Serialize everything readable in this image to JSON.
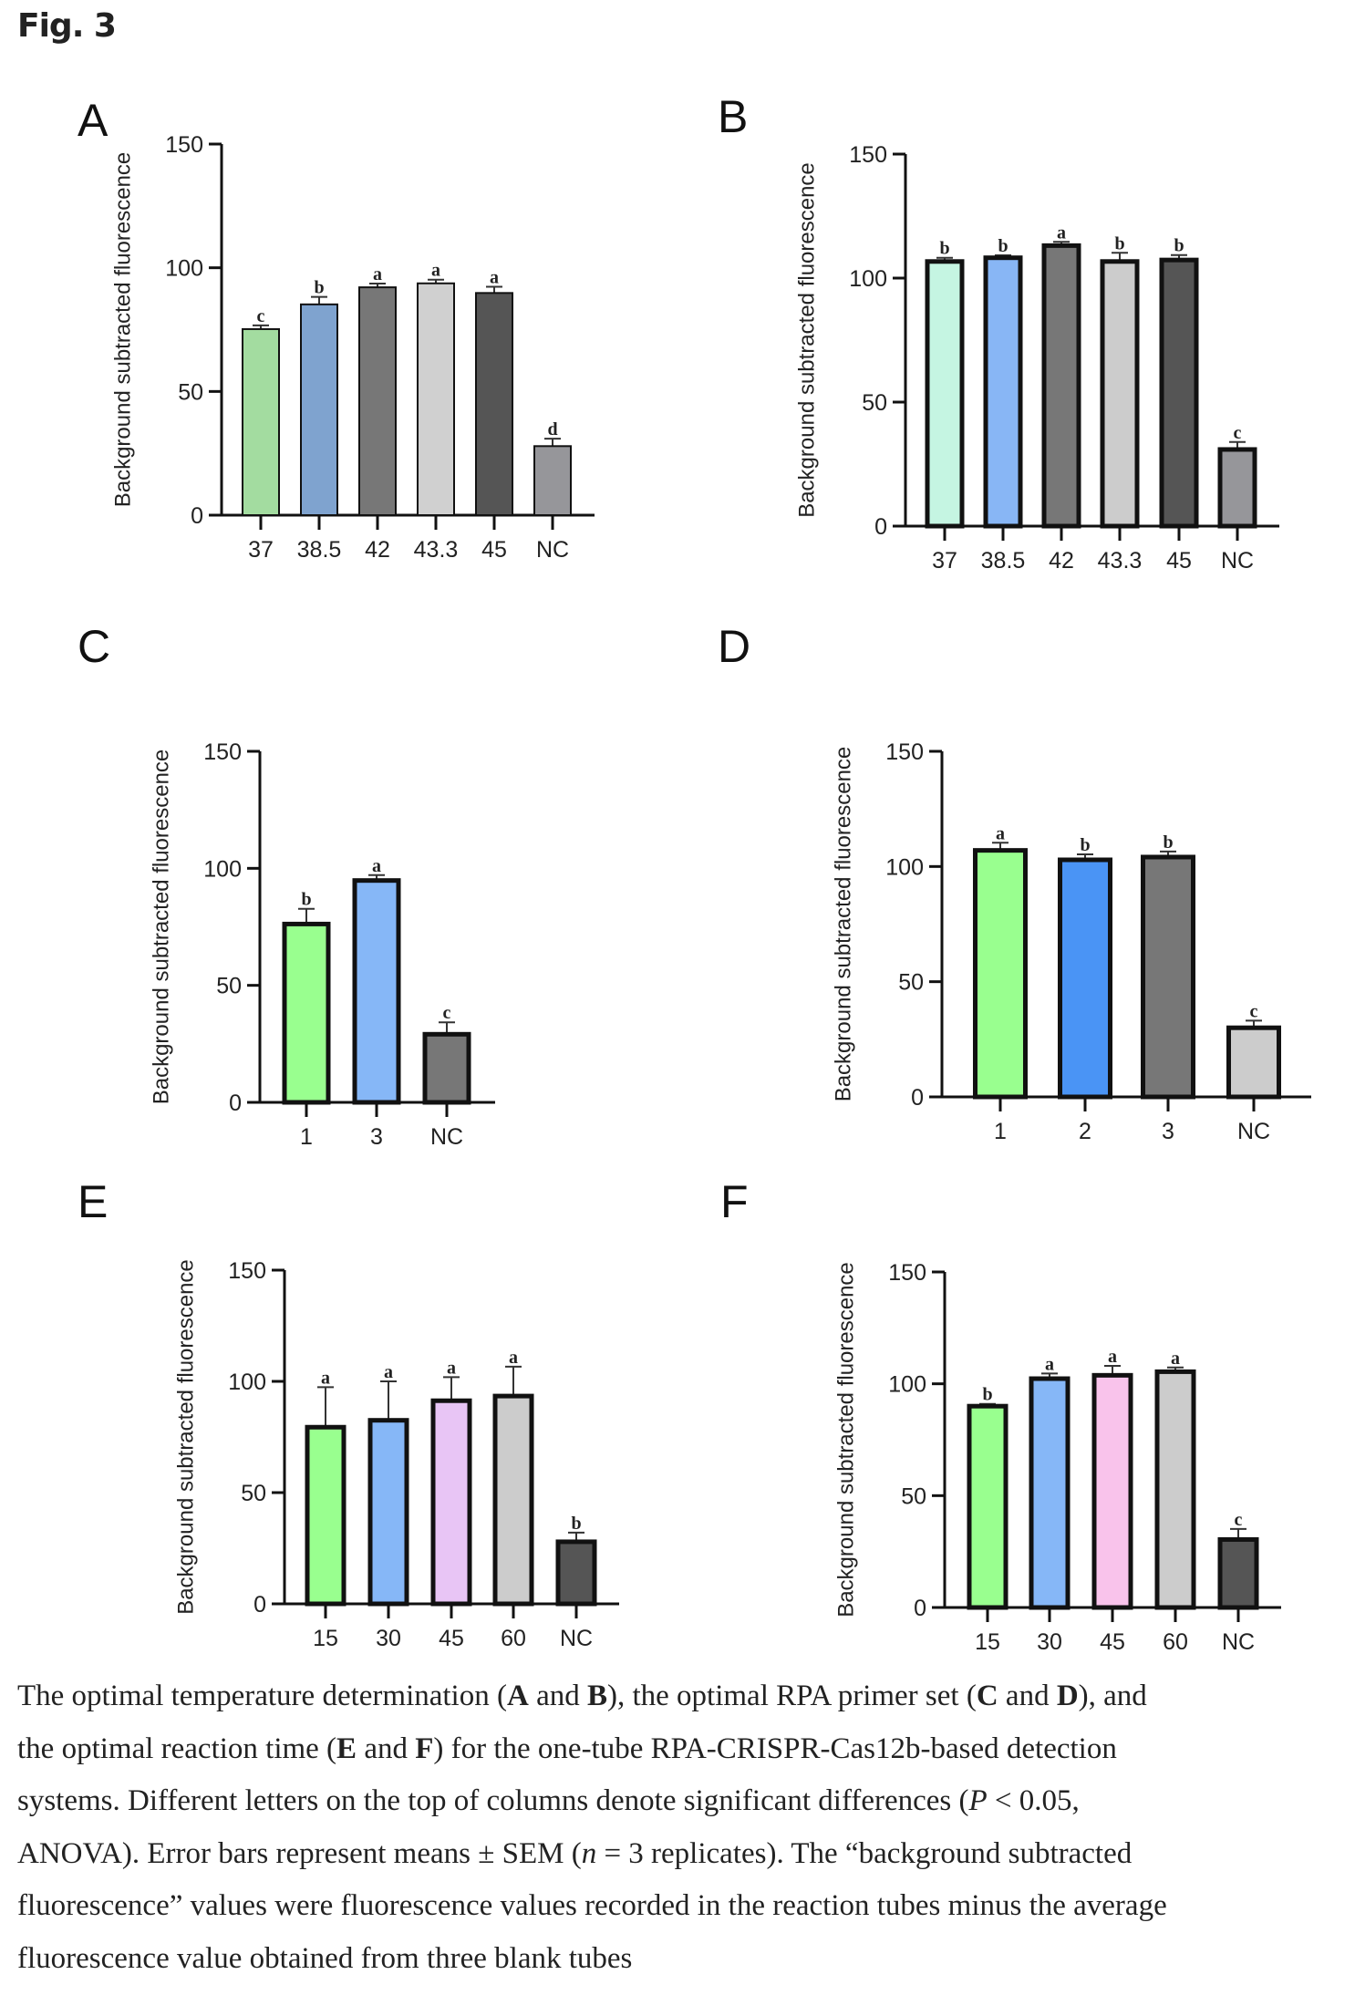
{
  "figure_title": "Fig. 3",
  "chart_data": [
    {
      "type": "bar",
      "panel": "A",
      "ylabel": "Background subtracted fluorescence",
      "ylim": [
        0,
        150
      ],
      "yticks": [
        0,
        50,
        100,
        150
      ],
      "categories": [
        "37",
        "38.5",
        "42",
        "43.3",
        "45",
        "NC"
      ],
      "values": [
        75.2,
        85.2,
        92.1,
        93.7,
        89.8,
        27.9
      ],
      "errors": [
        1.5,
        3,
        1.5,
        1.5,
        2.5,
        3
      ],
      "letters": [
        "c",
        "b",
        "a",
        "a",
        "a",
        "d"
      ],
      "colors": [
        "#a3dca0",
        "#7fa3cf",
        "#777777",
        "#d0d0d0",
        "#555555",
        "#96969a"
      ]
    },
    {
      "type": "bar",
      "panel": "B",
      "ylabel": "Background subtracted fluorescence",
      "ylim": [
        0,
        150
      ],
      "yticks": [
        0,
        50,
        100,
        150
      ],
      "categories": [
        "37",
        "38.5",
        "42",
        "43.3",
        "45",
        "NC"
      ],
      "values": [
        106.7,
        108.2,
        113.1,
        106.7,
        107.3,
        30.9
      ],
      "errors": [
        1.5,
        1,
        1.5,
        3.5,
        2,
        3
      ],
      "letters": [
        "b",
        "b",
        "a",
        "b",
        "b",
        "c"
      ],
      "colors": [
        "#c5f5e2",
        "#88b6f5",
        "#777777",
        "#cccccc",
        "#555555",
        "#96969a"
      ]
    },
    {
      "type": "bar",
      "panel": "C",
      "ylabel": "Background subtracted fluorescence",
      "ylim": [
        0,
        150
      ],
      "yticks": [
        0,
        50,
        100,
        150
      ],
      "categories": [
        "1",
        "3",
        "NC"
      ],
      "values": [
        76.2,
        94.8,
        29.1
      ],
      "errors": [
        6.5,
        2.3,
        5.1
      ],
      "letters": [
        "b",
        "a",
        "c"
      ],
      "colors": [
        "#99ff8f",
        "#86b7f7",
        "#777777"
      ]
    },
    {
      "type": "bar",
      "panel": "D",
      "ylabel": "Background subtracted fluorescence",
      "ylim": [
        0,
        150
      ],
      "yticks": [
        0,
        50,
        100,
        150
      ],
      "categories": [
        "1",
        "2",
        "3",
        "NC"
      ],
      "values": [
        107,
        102.9,
        104.1,
        30
      ],
      "errors": [
        3.3,
        2.4,
        2.4,
        3.1
      ],
      "letters": [
        "a",
        "b",
        "b",
        "c"
      ],
      "colors": [
        "#99ff8f",
        "#4a94f5",
        "#777777",
        "#cccccc"
      ]
    },
    {
      "type": "bar",
      "panel": "E",
      "ylabel": "Background subtracted fluorescence",
      "ylim": [
        0,
        150
      ],
      "yticks": [
        0,
        50,
        100,
        150
      ],
      "categories": [
        "15",
        "30",
        "45",
        "60",
        "NC"
      ],
      "values": [
        79.4,
        82.5,
        91.3,
        93.4,
        27.9
      ],
      "errors": [
        18,
        17.5,
        10.6,
        13.2,
        4.1
      ],
      "letters": [
        "a",
        "a",
        "a",
        "a",
        "b"
      ],
      "colors": [
        "#99ff8f",
        "#86b7f7",
        "#e8c5f5",
        "#cccccc",
        "#555555"
      ]
    },
    {
      "type": "bar",
      "panel": "F",
      "ylabel": "Background subtracted fluorescence",
      "ylim": [
        0,
        150
      ],
      "yticks": [
        0,
        50,
        100,
        150
      ],
      "categories": [
        "15",
        "30",
        "45",
        "60",
        "NC"
      ],
      "values": [
        90,
        102.3,
        103.8,
        105.4,
        30.4
      ],
      "errors": [
        1,
        2.3,
        4.2,
        1.9,
        4.7
      ],
      "letters": [
        "b",
        "a",
        "a",
        "a",
        "c"
      ],
      "colors": [
        "#99ff8f",
        "#86b7f7",
        "#f9c3eb",
        "#cccccc",
        "#555555"
      ]
    }
  ],
  "caption": [
    [
      {
        "t": "The optimal temperature determination ("
      },
      {
        "t": "A",
        "s": "b"
      },
      {
        "t": " and "
      },
      {
        "t": "B",
        "s": "b"
      },
      {
        "t": "), the optimal RPA primer set ("
      },
      {
        "t": "C",
        "s": "b"
      },
      {
        "t": " and "
      },
      {
        "t": "D",
        "s": "b"
      },
      {
        "t": "), and"
      }
    ],
    [
      {
        "t": "the optimal reaction time ("
      },
      {
        "t": "E",
        "s": "b"
      },
      {
        "t": " and "
      },
      {
        "t": "F",
        "s": "b"
      },
      {
        "t": ") for the one-tube RPA-CRISPR-Cas12b-based detection"
      }
    ],
    [
      {
        "t": "systems. Different letters on the top of columns denote significant differences ("
      },
      {
        "t": "P",
        "s": "i"
      },
      {
        "t": " < 0.05,"
      }
    ],
    [
      {
        "t": "ANOVA). Error bars represent means ± SEM ("
      },
      {
        "t": "n",
        "s": "i"
      },
      {
        "t": " = 3 replicates). The “background subtracted"
      }
    ],
    [
      {
        "t": "fluorescence” values were fluorescence values recorded in the reaction tubes minus the average"
      }
    ],
    [
      {
        "t": "fluorescence value obtained from three blank tubes"
      }
    ]
  ]
}
